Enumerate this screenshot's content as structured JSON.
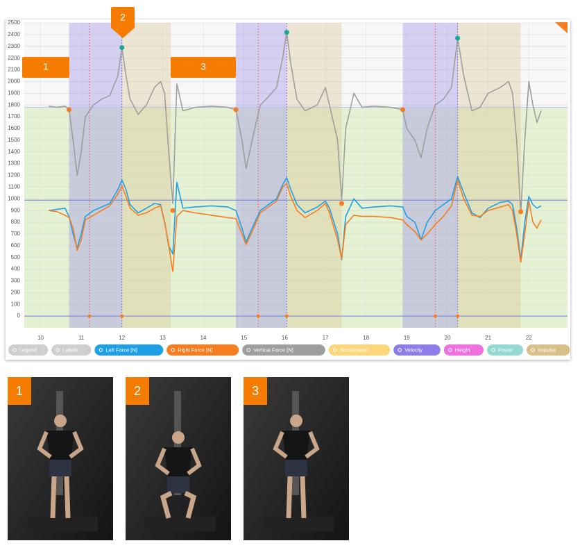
{
  "chart_data": {
    "type": "line",
    "xlim": [
      9.6,
      22.95
    ],
    "ylim": [
      -100,
      2500
    ],
    "xticks": [
      10,
      11,
      12,
      13,
      14,
      15,
      16,
      17,
      18,
      19,
      20,
      21,
      22
    ],
    "yticks": [
      0,
      100,
      200,
      300,
      400,
      500,
      600,
      700,
      800,
      900,
      1000,
      1100,
      1200,
      1300,
      1400,
      1500,
      1600,
      1700,
      1800,
      1900,
      2000,
      2100,
      2200,
      2300,
      2400,
      2500
    ],
    "grid": true,
    "x": [
      10.2,
      10.4,
      10.6,
      10.7,
      10.8,
      10.9,
      11.0,
      11.1,
      11.3,
      11.5,
      11.7,
      11.9,
      12.0,
      12.1,
      12.2,
      12.4,
      12.6,
      12.8,
      12.95,
      13.05,
      13.15,
      13.25,
      13.35,
      13.5,
      13.8,
      14.2,
      14.6,
      14.8,
      14.95,
      15.05,
      15.2,
      15.4,
      15.6,
      15.8,
      15.95,
      16.05,
      16.15,
      16.3,
      16.5,
      16.8,
      17.0,
      17.1,
      17.3,
      17.4,
      17.5,
      17.7,
      17.9,
      18.2,
      18.6,
      18.9,
      19.0,
      19.2,
      19.35,
      19.5,
      19.7,
      19.9,
      20.1,
      20.25,
      20.4,
      20.6,
      20.8,
      21.0,
      21.3,
      21.5,
      21.6,
      21.7,
      21.8,
      21.9,
      22.0,
      22.1,
      22.2,
      22.3
    ],
    "series": [
      {
        "name": "Vertical Force [N]",
        "color": "#9e9e9e",
        "values": [
          1790,
          1780,
          1790,
          1760,
          1500,
          1200,
          1400,
          1700,
          1800,
          1850,
          1880,
          2050,
          2290,
          2050,
          1850,
          1720,
          1800,
          1950,
          2000,
          1900,
          1400,
          960,
          1980,
          1750,
          1780,
          1790,
          1780,
          1760,
          1500,
          1260,
          1500,
          1800,
          1870,
          1950,
          2200,
          2420,
          2150,
          1850,
          1750,
          1800,
          1950,
          1800,
          1500,
          990,
          1600,
          1900,
          1780,
          1790,
          1780,
          1760,
          1600,
          1500,
          1350,
          1600,
          1800,
          1850,
          1950,
          2370,
          2050,
          1750,
          1780,
          1900,
          1950,
          2000,
          1900,
          1500,
          880,
          1500,
          2000,
          1800,
          1650,
          1750
        ]
      },
      {
        "name": "Left Force [N]",
        "color": "#1fa0e6",
        "values": [
          900,
          910,
          920,
          850,
          700,
          580,
          700,
          850,
          900,
          930,
          960,
          1080,
          1160,
          1080,
          950,
          880,
          920,
          960,
          950,
          800,
          600,
          530,
          1140,
          920,
          930,
          940,
          930,
          900,
          750,
          630,
          750,
          900,
          950,
          1000,
          1120,
          1180,
          1080,
          950,
          880,
          930,
          980,
          920,
          700,
          480,
          850,
          1000,
          920,
          930,
          940,
          930,
          850,
          800,
          650,
          800,
          900,
          950,
          1000,
          1190,
          1050,
          880,
          840,
          920,
          970,
          980,
          950,
          750,
          480,
          800,
          1020,
          950,
          920,
          940
        ]
      },
      {
        "name": "Right Force [N]",
        "color": "#f57c1f",
        "values": [
          900,
          890,
          860,
          840,
          750,
          560,
          650,
          820,
          860,
          900,
          940,
          1040,
          1110,
          1020,
          920,
          860,
          880,
          920,
          940,
          800,
          600,
          380,
          850,
          900,
          880,
          860,
          840,
          830,
          700,
          610,
          720,
          880,
          930,
          980,
          1100,
          1130,
          1020,
          900,
          840,
          900,
          960,
          880,
          650,
          490,
          780,
          860,
          850,
          850,
          840,
          820,
          780,
          720,
          650,
          700,
          780,
          850,
          940,
          1160,
          1000,
          860,
          850,
          900,
          930,
          950,
          900,
          700,
          460,
          700,
          980,
          800,
          750,
          820
        ]
      }
    ],
    "legend_controls": [
      {
        "name": "Legend",
        "color": "#cfcfcf"
      },
      {
        "name": "Labels",
        "color": "#cfcfcf"
      }
    ],
    "legend_extra": [
      {
        "name": "Acceleration",
        "color": "#fbd67a"
      },
      {
        "name": "Velocity",
        "color": "#8e7ce8"
      },
      {
        "name": "Height",
        "color": "#f070e0"
      },
      {
        "name": "Power",
        "color": "#94d8d2"
      },
      {
        "name": "Impulse",
        "color": "#d9c089"
      }
    ],
    "bands": [
      {
        "x": [
          10.7,
          12.0
        ],
        "color": "#8e7ce8"
      },
      {
        "x": [
          12.0,
          13.2
        ],
        "color": "#d9c089"
      },
      {
        "x": [
          14.8,
          16.05
        ],
        "color": "#8e7ce8"
      },
      {
        "x": [
          16.05,
          17.4
        ],
        "color": "#d9c089"
      },
      {
        "x": [
          18.9,
          20.25
        ],
        "color": "#8e7ce8"
      },
      {
        "x": [
          20.25,
          21.8
        ],
        "color": "#d9c089"
      }
    ],
    "reference_lines": [
      {
        "y": 988,
        "color": "#6f7fd6"
      },
      {
        "y": 1780,
        "color": "#b8bfe8",
        "fill_below": "#e4f1d2"
      }
    ],
    "vertical_lines": [
      {
        "x": 11.2,
        "color": "#e57373"
      },
      {
        "x": 12.0,
        "color": "#7e6fd8"
      },
      {
        "x": 15.35,
        "color": "#e57373"
      },
      {
        "x": 16.05,
        "color": "#7e6fd8"
      },
      {
        "x": 19.7,
        "color": "#e57373"
      },
      {
        "x": 20.25,
        "color": "#7e6fd8"
      }
    ],
    "events": [
      {
        "x": 10.7,
        "y": 1760,
        "color": "#f57c1f"
      },
      {
        "x": 12.0,
        "y": 2290,
        "color": "#1aa39a"
      },
      {
        "x": 13.25,
        "y": 900,
        "color": "#f57c1f"
      },
      {
        "x": 14.8,
        "y": 1760,
        "color": "#f57c1f"
      },
      {
        "x": 16.05,
        "y": 2420,
        "color": "#1aa39a"
      },
      {
        "x": 17.4,
        "y": 960,
        "color": "#f57c1f"
      },
      {
        "x": 18.9,
        "y": 1760,
        "color": "#f57c1f"
      },
      {
        "x": 20.25,
        "y": 2370,
        "color": "#1aa39a"
      },
      {
        "x": 21.8,
        "y": 890,
        "color": "#f57c1f"
      },
      {
        "x": 11.2,
        "y": 0,
        "color": "#f57c1f"
      },
      {
        "x": 12.0,
        "y": 0,
        "color": "#f57c1f"
      },
      {
        "x": 15.35,
        "y": 0,
        "color": "#f57c1f"
      },
      {
        "x": 16.05,
        "y": 0,
        "color": "#f57c1f"
      },
      {
        "x": 19.7,
        "y": 0,
        "color": "#f57c1f"
      },
      {
        "x": 20.25,
        "y": 0,
        "color": "#f57c1f"
      }
    ]
  },
  "callouts": [
    "1",
    "2",
    "3"
  ],
  "photos": [
    "1",
    "2",
    "3"
  ]
}
